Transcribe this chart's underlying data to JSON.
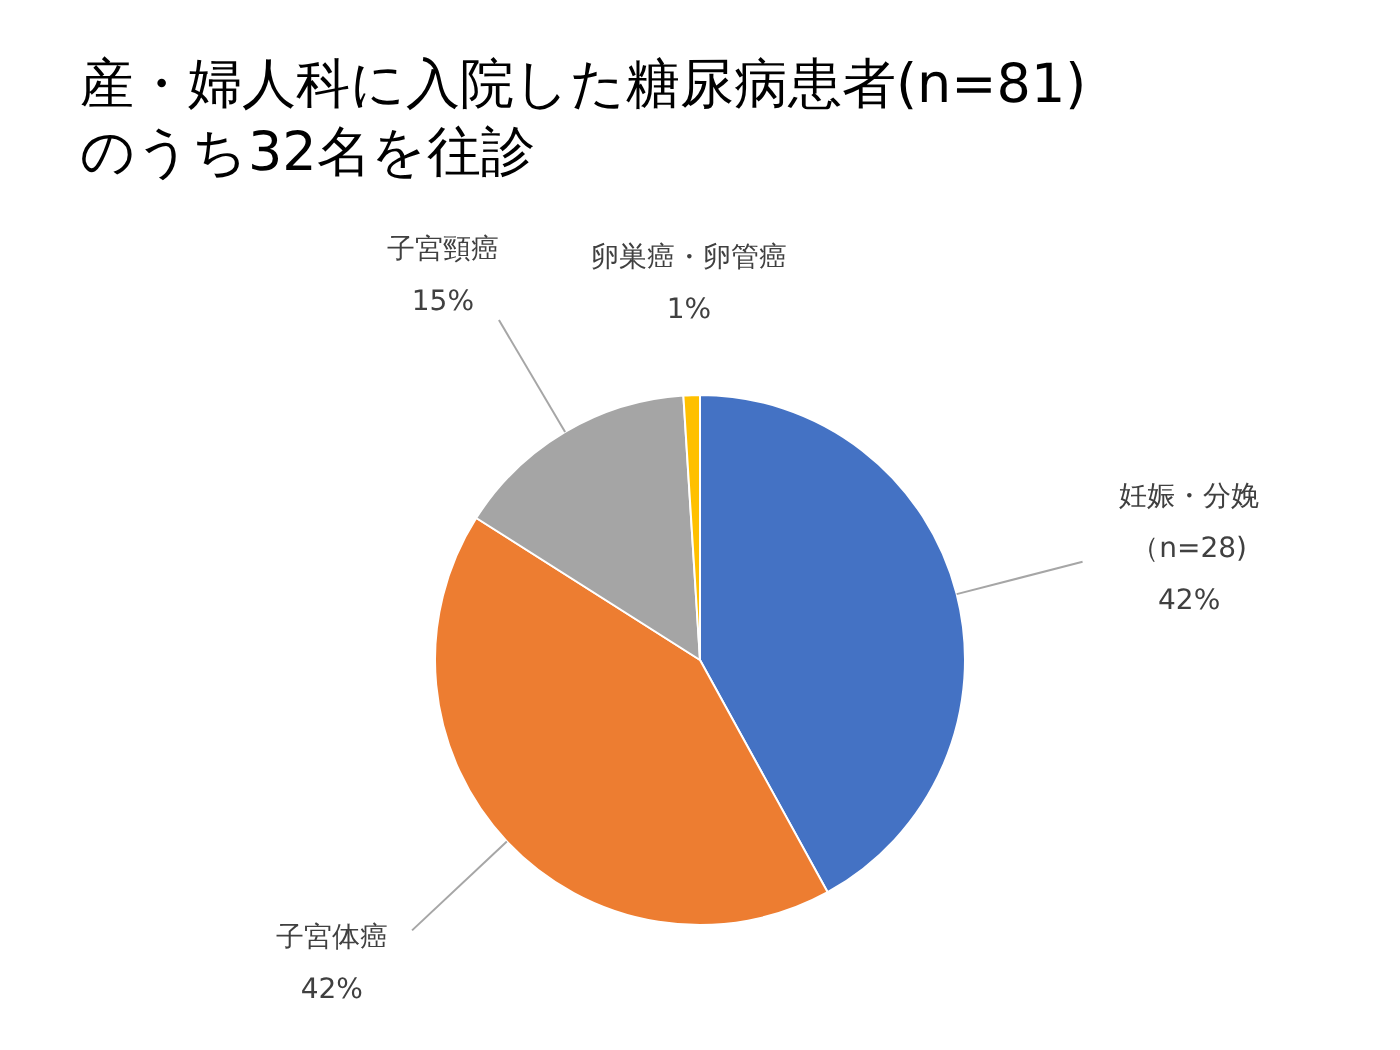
{
  "chart_data": {
    "type": "pie",
    "title": "産・婦人科に入院した糖尿病患者(n=81)\nのうち32名を往診",
    "categories": [
      "妊娠・分娩",
      "子宮体癌",
      "子宮頸癌",
      "卵巣癌・卵管癌"
    ],
    "values": [
      42,
      42,
      15,
      1
    ],
    "colors": [
      "#4472c4",
      "#ed7d31",
      "#a5a5a5",
      "#ffc000"
    ],
    "value_labels": [
      "42%",
      "42%",
      "15%",
      "1%"
    ],
    "annotations": [
      {
        "text": "（n=28)",
        "x": "妊娠・分娩"
      }
    ],
    "legend": false
  }
}
